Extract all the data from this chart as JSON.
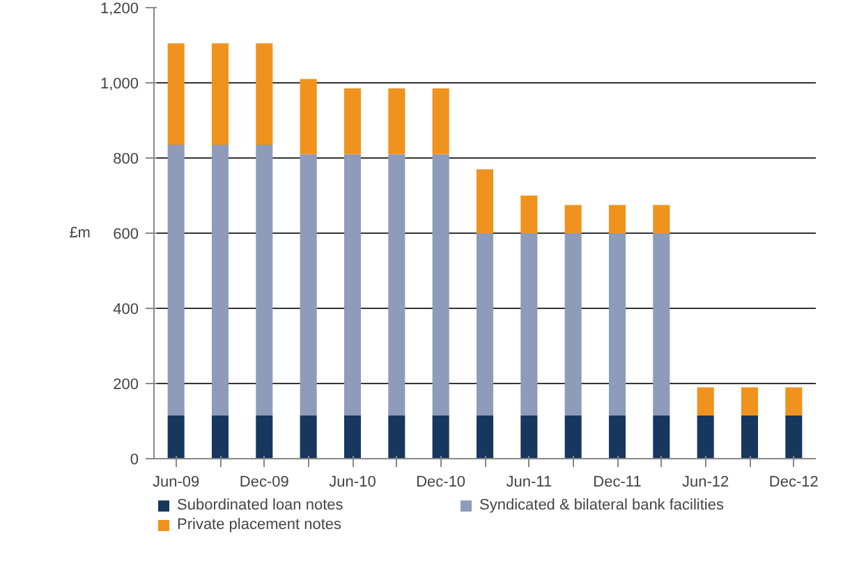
{
  "chart_data": {
    "type": "bar",
    "stacked": true,
    "ylabel": "£m",
    "categories": [
      "Jun-09",
      null,
      "Dec-09",
      null,
      "Jun-10",
      null,
      "Dec-10",
      null,
      "Jun-11",
      null,
      "Dec-11",
      null,
      "Jun-12",
      null,
      "Dec-12"
    ],
    "series": [
      {
        "name": "Subordinated loan notes",
        "color": "#17375e",
        "values": [
          115,
          115,
          115,
          115,
          115,
          115,
          115,
          115,
          115,
          115,
          115,
          115,
          115,
          115,
          115
        ]
      },
      {
        "name": "Syndicated & bilateral bank facilities",
        "color": "#8e9bbb",
        "values": [
          720,
          720,
          720,
          695,
          695,
          695,
          695,
          485,
          485,
          485,
          485,
          485,
          0,
          0,
          0
        ]
      },
      {
        "name": "Private placement notes",
        "color": "#f0921e",
        "values": [
          270,
          270,
          270,
          200,
          175,
          175,
          175,
          170,
          100,
          75,
          75,
          75,
          75,
          75,
          75
        ]
      }
    ],
    "ylim": [
      0,
      1200
    ],
    "yticks": [
      {
        "value": 0,
        "label": "0"
      },
      {
        "value": 200,
        "label": "200"
      },
      {
        "value": 400,
        "label": "400"
      },
      {
        "value": 600,
        "label": "600"
      },
      {
        "value": 800,
        "label": "800"
      },
      {
        "value": 1000,
        "label": "1,000"
      },
      {
        "value": 1200,
        "label": "1,200"
      }
    ],
    "grid": "y",
    "legend": "bottom"
  }
}
